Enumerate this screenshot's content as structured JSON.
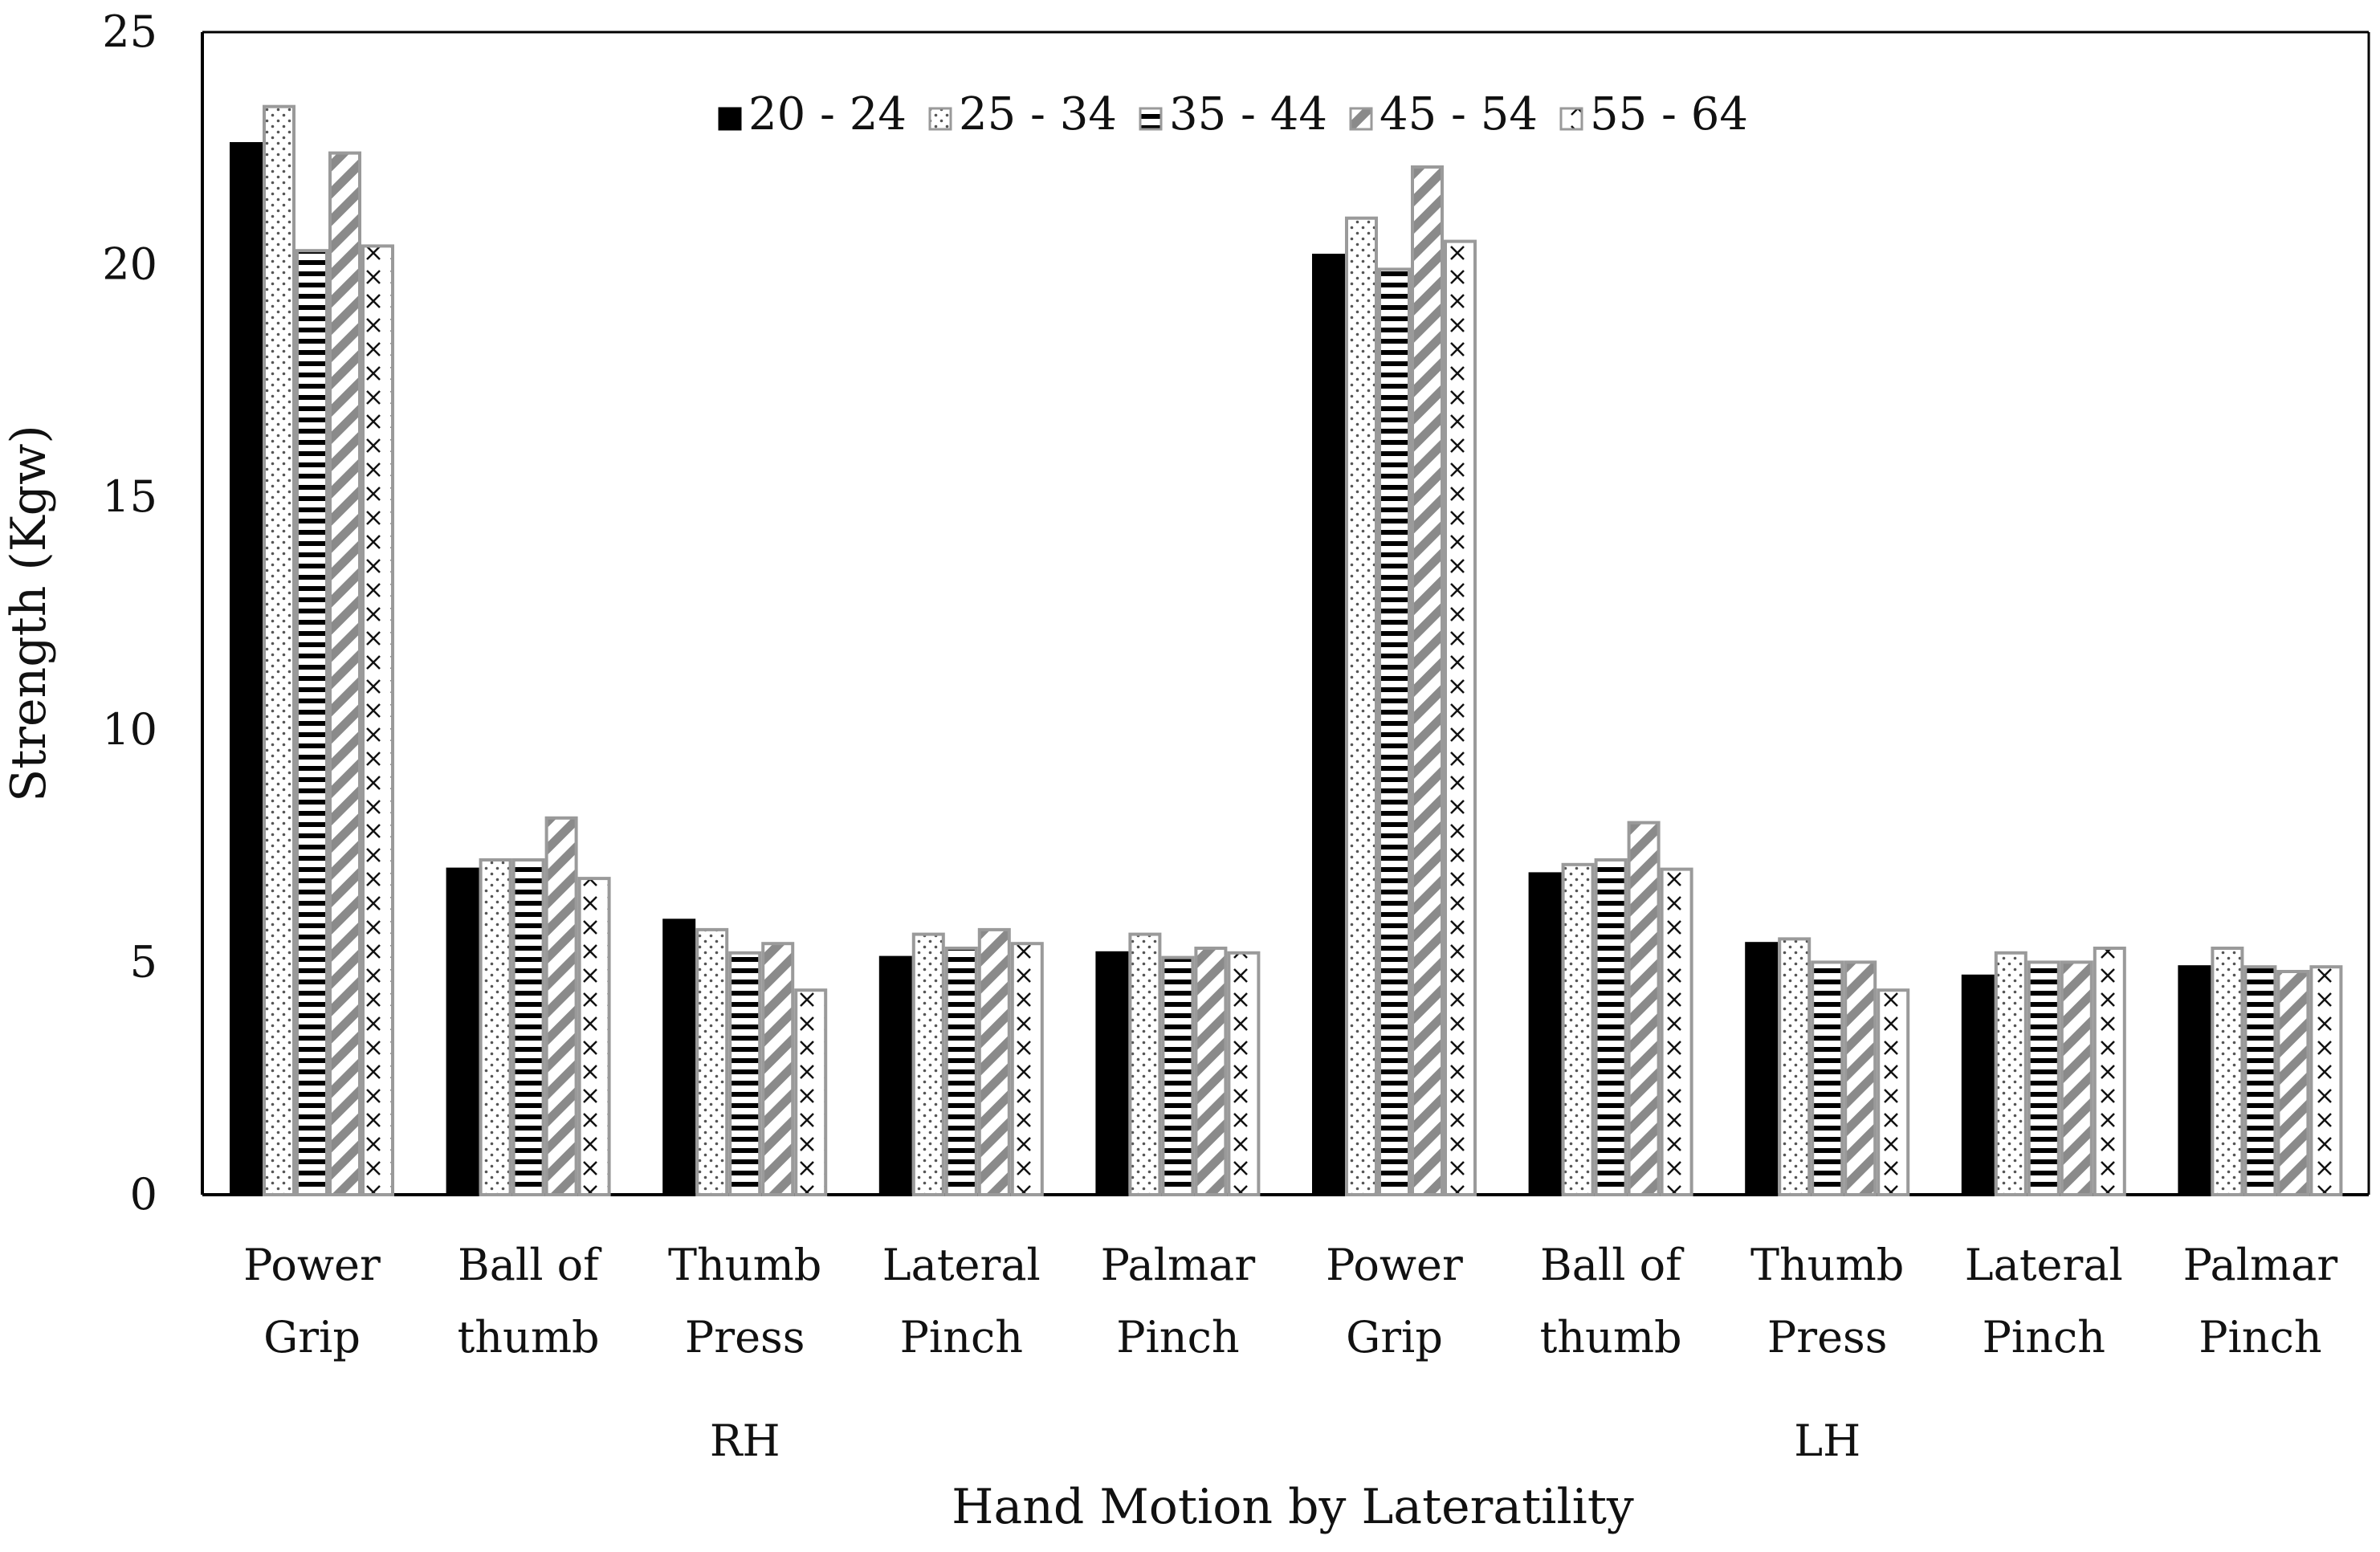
{
  "chart_data": {
    "type": "bar",
    "title": "",
    "xlabel": "Hand Motion by Lateratility",
    "ylabel": "Strength (Kgw)",
    "ylim": [
      0,
      25
    ],
    "yticks": [
      0,
      5,
      10,
      15,
      20,
      25
    ],
    "grid": false,
    "legend_position": "top-center",
    "groups": [
      {
        "label": "RH",
        "span": [
          0,
          4
        ]
      },
      {
        "label": "LH",
        "span": [
          5,
          9
        ]
      }
    ],
    "categories": [
      [
        "Power",
        "Grip"
      ],
      [
        "Ball of",
        "thumb"
      ],
      [
        "Thumb",
        "Press"
      ],
      [
        "Lateral",
        "Pinch"
      ],
      [
        "Palmar",
        "Pinch"
      ],
      [
        "Power",
        "Grip"
      ],
      [
        "Ball of",
        "thumb"
      ],
      [
        "Thumb",
        "Press"
      ],
      [
        "Lateral",
        "Pinch"
      ],
      [
        "Palmar",
        "Pinch"
      ]
    ],
    "series": [
      {
        "name": "20 - 24",
        "pattern": "solid",
        "values": [
          22.6,
          7.0,
          5.9,
          5.1,
          5.2,
          20.2,
          6.9,
          5.4,
          4.7,
          4.9
        ]
      },
      {
        "name": "25 - 34",
        "pattern": "dots",
        "values": [
          23.4,
          7.2,
          5.7,
          5.6,
          5.6,
          21.0,
          7.1,
          5.5,
          5.2,
          5.3
        ]
      },
      {
        "name": "35 - 44",
        "pattern": "hlines",
        "values": [
          20.3,
          7.2,
          5.2,
          5.3,
          5.1,
          19.9,
          7.2,
          5.0,
          5.0,
          4.9
        ]
      },
      {
        "name": "45 - 54",
        "pattern": "diag",
        "values": [
          22.4,
          8.1,
          5.4,
          5.7,
          5.3,
          22.1,
          8.0,
          5.0,
          5.0,
          4.8
        ]
      },
      {
        "name": "55 - 64",
        "pattern": "cross",
        "values": [
          20.4,
          6.8,
          4.4,
          5.4,
          5.2,
          20.5,
          7.0,
          4.4,
          5.3,
          4.9
        ]
      }
    ],
    "colors": {
      "solid": "#000000",
      "edge": "#999999",
      "pattern_dark": "#000000",
      "pattern_grey": "#888888",
      "axis": "#000000"
    }
  }
}
